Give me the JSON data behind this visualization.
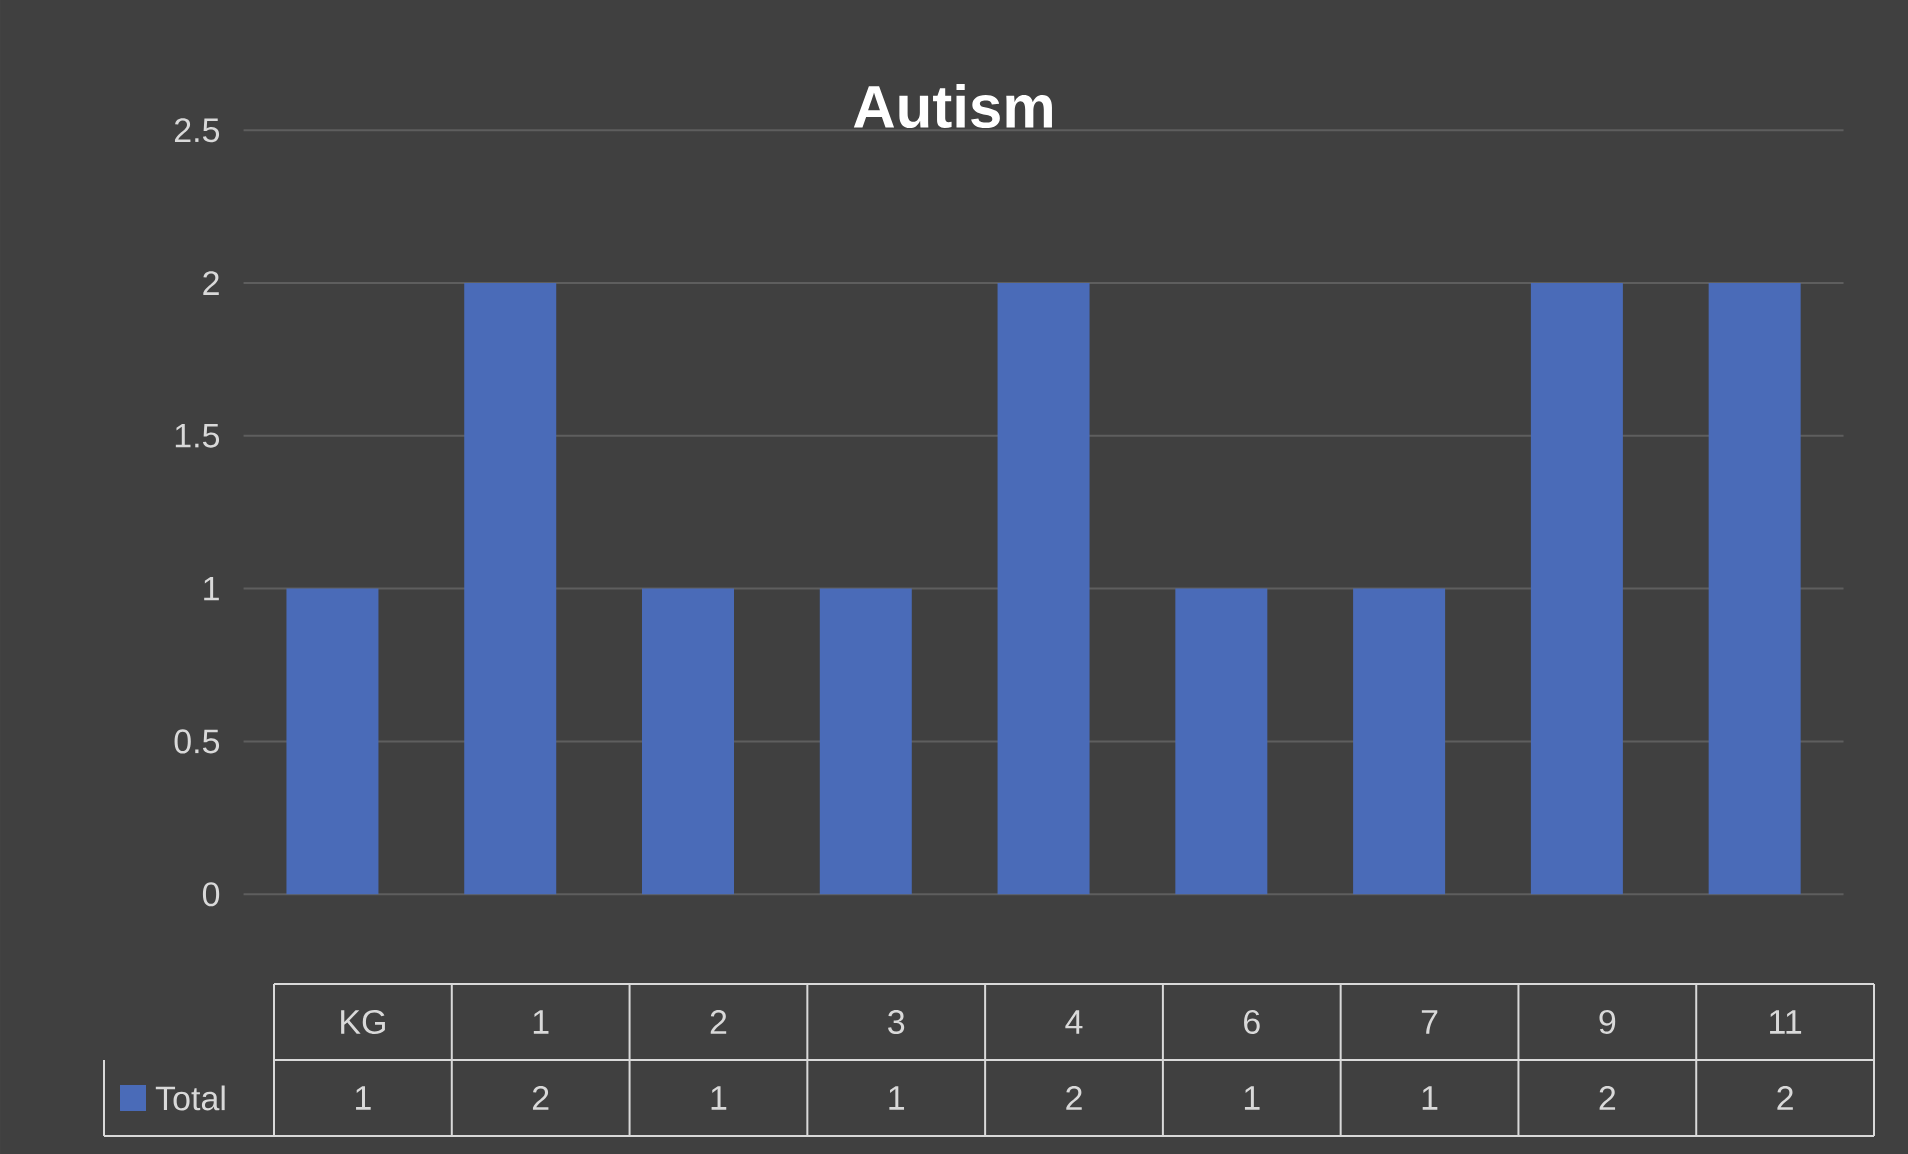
{
  "chart_data": {
    "type": "bar",
    "title": "Autism",
    "categories": [
      "KG",
      "1",
      "2",
      "3",
      "4",
      "6",
      "7",
      "9",
      "11"
    ],
    "series": [
      {
        "name": "Total",
        "color": "#4a6bb8",
        "values": [
          1,
          2,
          1,
          1,
          2,
          1,
          1,
          2,
          2
        ]
      }
    ],
    "ylim": [
      0,
      2.5
    ],
    "yticks": [
      0,
      0.5,
      1,
      1.5,
      2,
      2.5
    ],
    "grid": "y",
    "data_labels": true,
    "legend": "bottom"
  }
}
